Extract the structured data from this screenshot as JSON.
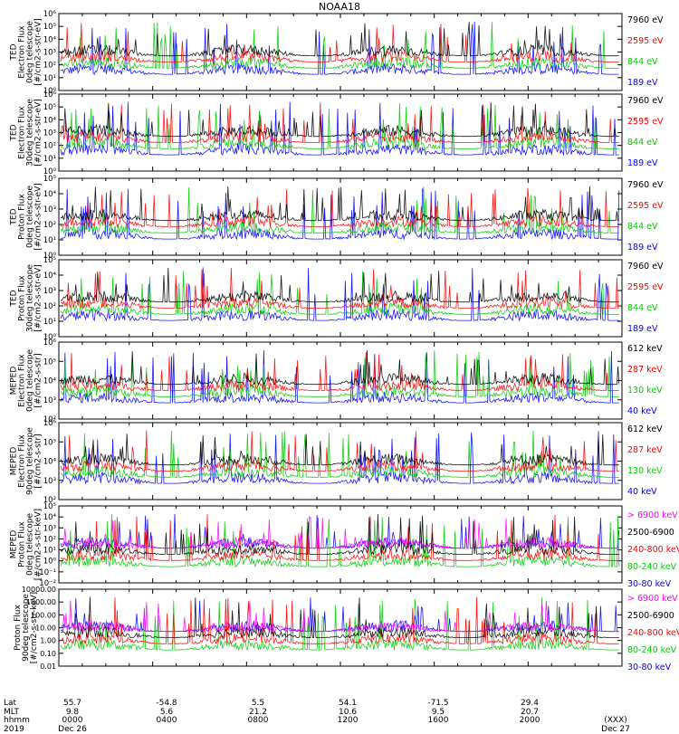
{
  "chart_data": {
    "type": "line",
    "title": "NOAA18",
    "panels": [
      {
        "ylabel": [
          "TED",
          "Electron Flux",
          "0deg telescope",
          "[#/cm2-s-str-eV]"
        ],
        "ticks": [
          "10⁶",
          "10⁵",
          "10⁴",
          "10³",
          "10²",
          "10¹",
          "10⁰"
        ],
        "series": [
          {
            "name": "7960 eV",
            "color": "#000000"
          },
          {
            "name": "2595 eV",
            "color": "#ff0000"
          },
          {
            "name": "844 eV",
            "color": "#00cc00"
          },
          {
            "name": "189 eV",
            "color": "#0000ff"
          }
        ]
      },
      {
        "ylabel": [
          "TED",
          "Electron Flux",
          "30deg telescope",
          "[#/cm2-s-str-eV]"
        ],
        "ticks": [
          "10⁶",
          "10⁵",
          "10⁴",
          "10³",
          "10²",
          "10¹",
          "10⁰"
        ],
        "series": [
          {
            "name": "7960 eV",
            "color": "#000000"
          },
          {
            "name": "2595 eV",
            "color": "#ff0000"
          },
          {
            "name": "844 eV",
            "color": "#00cc00"
          },
          {
            "name": "189 eV",
            "color": "#0000ff"
          }
        ]
      },
      {
        "ylabel": [
          "TED",
          "Proton Flux",
          "0deg telescope",
          "[#/cm2-s-str-eV]"
        ],
        "ticks": [
          "10⁵",
          "10⁴",
          "10³",
          "10²",
          "10¹",
          "10⁰"
        ],
        "series": [
          {
            "name": "7960 eV",
            "color": "#000000"
          },
          {
            "name": "2595 eV",
            "color": "#ff0000"
          },
          {
            "name": "844 eV",
            "color": "#00cc00"
          },
          {
            "name": "189 eV",
            "color": "#0000ff"
          }
        ]
      },
      {
        "ylabel": [
          "TED",
          "Proton Flux",
          "30deg telescope",
          "[#/cm2-s-str-eV]"
        ],
        "ticks": [
          "10⁵",
          "10⁴",
          "10³",
          "10²",
          "10¹",
          "10⁰"
        ],
        "series": [
          {
            "name": "7960 eV",
            "color": "#000000"
          },
          {
            "name": "2595 eV",
            "color": "#ff0000"
          },
          {
            "name": "844 eV",
            "color": "#00cc00"
          },
          {
            "name": "189 eV",
            "color": "#0000ff"
          }
        ]
      },
      {
        "ylabel": [
          "MEPED",
          "Electron Flux",
          "0deg telescope",
          "[#/cm2-s-str]"
        ],
        "ticks": [
          "10⁶",
          "10⁵",
          "10⁴",
          "10³",
          "10²"
        ],
        "series": [
          {
            "name": "612 keV",
            "color": "#000000"
          },
          {
            "name": "287 keV",
            "color": "#ff0000"
          },
          {
            "name": "130 keV",
            "color": "#00cc00"
          },
          {
            "name": "40 keV",
            "color": "#0000ff"
          }
        ]
      },
      {
        "ylabel": [
          "MEPED",
          "Electron Flux",
          "90deg telescope",
          "[#/cm2-s-str]"
        ],
        "ticks": [
          "10⁶",
          "10⁵",
          "10⁴",
          "10³",
          "10²"
        ],
        "series": [
          {
            "name": "612 keV",
            "color": "#000000"
          },
          {
            "name": "287 keV",
            "color": "#ff0000"
          },
          {
            "name": "130 keV",
            "color": "#00cc00"
          },
          {
            "name": "40 keV",
            "color": "#0000ff"
          }
        ]
      },
      {
        "ylabel": [
          "MEPED",
          "Proton Flux",
          "0deg telescope",
          "[#/cm2-s-str-keV]"
        ],
        "ticks": [
          "10⁵",
          "10⁴",
          "10³",
          "10²",
          "10¹",
          "10⁰",
          "10⁻¹",
          "10⁻²"
        ],
        "series": [
          {
            "name": "> 6900 keV",
            "color": "#ff00ff"
          },
          {
            "name": "2500-6900",
            "color": "#000000"
          },
          {
            "name": "240-800 keV",
            "color": "#ff0000"
          },
          {
            "name": "80-240 keV",
            "color": "#00cc00"
          },
          {
            "name": "30-80 keV",
            "color": "#0000ff"
          }
        ]
      },
      {
        "ylabel": [
          "Proton Flux",
          "90deg telescope",
          "[#/cm2-s-str-keV]"
        ],
        "ticks": [
          "10000.00",
          "1000.00",
          "100.00",
          "10.00",
          "1.00",
          "0.10",
          "0.01"
        ],
        "series": [
          {
            "name": "> 6900 keV",
            "color": "#ff00ff"
          },
          {
            "name": "2500-6900",
            "color": "#000000"
          },
          {
            "name": "240-800 keV",
            "color": "#ff0000"
          },
          {
            "name": "80-240 keV",
            "color": "#00cc00"
          },
          {
            "name": "30-80 keV",
            "color": "#0000ff"
          }
        ]
      }
    ],
    "x_axis": {
      "row_labels": [
        "Lat",
        "MLT",
        "hhmm",
        "2019"
      ],
      "columns": [
        {
          "lat": "55.7",
          "mlt": "9.8",
          "hhmm": "0000",
          "date": "Dec 26"
        },
        {
          "lat": "-54.8",
          "mlt": "5.6",
          "hhmm": "0400",
          "date": ""
        },
        {
          "lat": "5.5",
          "mlt": "21.2",
          "hhmm": "0800",
          "date": ""
        },
        {
          "lat": "54.1",
          "mlt": "10.6",
          "hhmm": "1200",
          "date": ""
        },
        {
          "lat": "-71.5",
          "mlt": "9.5",
          "hhmm": "1600",
          "date": ""
        },
        {
          "lat": "29.4",
          "mlt": "20.7",
          "hhmm": "2000",
          "date": ""
        },
        {
          "lat": "",
          "mlt": "",
          "hhmm": "(XXX)",
          "date": "Dec 27"
        }
      ]
    }
  }
}
